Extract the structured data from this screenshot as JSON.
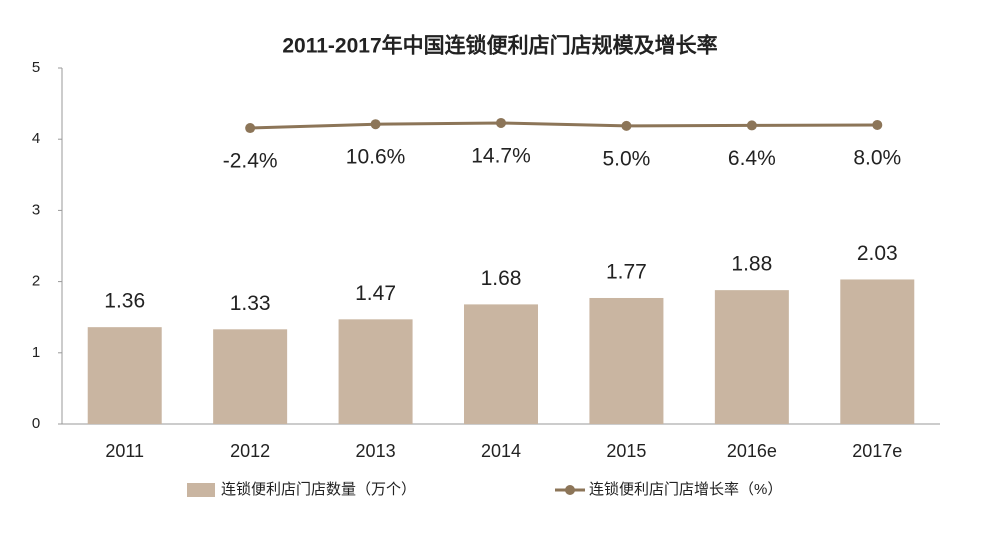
{
  "chart_data": {
    "type": "bar_line",
    "title": "2011-2017年中国连锁便利店门店规模及增长率",
    "categories": [
      "2011",
      "2012",
      "2013",
      "2014",
      "2015",
      "2016e",
      "2017e"
    ],
    "series": [
      {
        "name": "连锁便利店门店数量（万个）",
        "type": "bar",
        "color": "#c9b5a1",
        "values": [
          1.36,
          1.33,
          1.47,
          1.68,
          1.77,
          1.88,
          2.03
        ]
      },
      {
        "name": "连锁便利店门店增长率（%）",
        "type": "line",
        "axis": "y2",
        "color": "#8c7558",
        "values": [
          null,
          -2.4,
          10.6,
          14.7,
          5.0,
          6.4,
          8.0
        ],
        "value_labels": [
          null,
          "-2.4%",
          "10.6%",
          "14.7%",
          "5.0%",
          "6.4%",
          "8.0%"
        ]
      }
    ],
    "ylim": [
      0,
      5
    ],
    "yticks": [
      0,
      1,
      2,
      3,
      4,
      5
    ],
    "y2lim": [
      -1000,
      200
    ],
    "grid": false,
    "legend": "bottom"
  }
}
